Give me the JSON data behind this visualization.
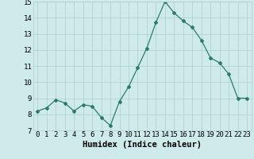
{
  "x": [
    0,
    1,
    2,
    3,
    4,
    5,
    6,
    7,
    8,
    9,
    10,
    11,
    12,
    13,
    14,
    15,
    16,
    17,
    18,
    19,
    20,
    21,
    22,
    23
  ],
  "y": [
    8.2,
    8.4,
    8.9,
    8.7,
    8.2,
    8.6,
    8.5,
    7.8,
    7.3,
    8.8,
    9.7,
    10.9,
    12.1,
    13.7,
    15.0,
    14.3,
    13.8,
    13.4,
    12.6,
    11.5,
    11.2,
    10.5,
    9.0,
    9.0
  ],
  "xlabel": "Humidex (Indice chaleur)",
  "ylim": [
    7,
    15
  ],
  "yticks": [
    7,
    8,
    9,
    10,
    11,
    12,
    13,
    14,
    15
  ],
  "xticks": [
    0,
    1,
    2,
    3,
    4,
    5,
    6,
    7,
    8,
    9,
    10,
    11,
    12,
    13,
    14,
    15,
    16,
    17,
    18,
    19,
    20,
    21,
    22,
    23
  ],
  "line_color": "#2d7a6b",
  "marker": "D",
  "marker_size": 2.0,
  "bg_color": "#ceeaea",
  "grid_color": "#b0cece",
  "xlabel_fontsize": 7.5,
  "tick_fontsize": 6.5
}
